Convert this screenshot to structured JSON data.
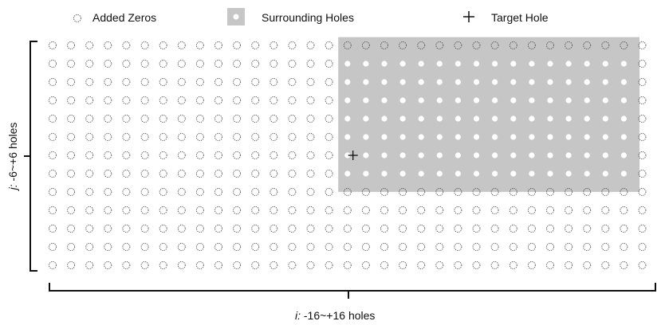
{
  "legend": {
    "added_zeros": "Added Zeros",
    "surrounding_holes": "Surrounding Holes",
    "target_hole": "Target Hole"
  },
  "axes": {
    "i_var": "i:",
    "i_range": " -16~+16 holes",
    "j_var": "j:",
    "j_range": " -6~+6 holes"
  },
  "grid": {
    "columns": 33,
    "rows": 13,
    "surrounding_region": {
      "col_start": 15,
      "col_end": 32,
      "row_start": 0,
      "row_end": 8
    },
    "target_hole": {
      "col": 16,
      "row": 6
    }
  },
  "colors": {
    "surrounding_fill": "#c6c6c6",
    "hole_dot": "#ffffff",
    "added_zero_stroke": "#555555",
    "bracket": "#111111"
  },
  "icons": {
    "added_zeros": "dashed-circle-icon",
    "surrounding_holes": "gray-square-dot-icon",
    "target_hole": "plus-marker-icon"
  }
}
